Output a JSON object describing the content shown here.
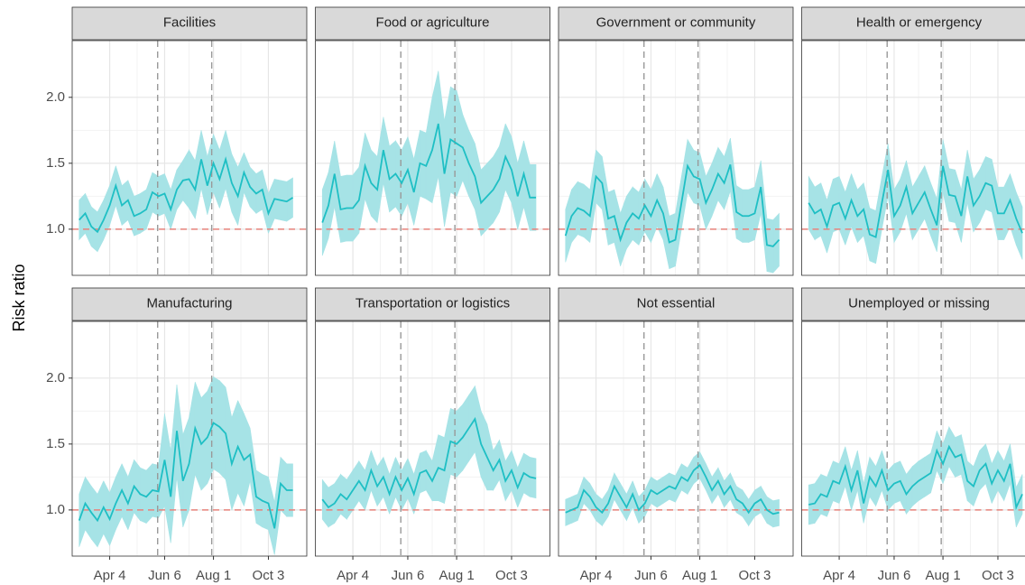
{
  "y_label": "Risk ratio",
  "facet_axes": {
    "x": [
      60,
      67,
      74,
      81,
      88,
      95,
      102,
      109,
      116,
      123,
      130,
      137,
      144,
      151,
      158,
      165,
      172,
      179,
      186,
      193,
      200,
      207,
      214,
      221,
      228,
      235,
      242,
      249,
      256,
      263,
      270,
      277,
      284,
      291,
      298,
      305
    ],
    "xlim": [
      52,
      321
    ],
    "xticks": [
      {
        "value": 95,
        "label": "Apr 4"
      },
      {
        "value": 158,
        "label": "Jun 6"
      },
      {
        "value": 214,
        "label": "Aug 1"
      },
      {
        "value": 277,
        "label": "Oct 3"
      }
    ],
    "ylim": [
      0.65,
      2.43
    ],
    "yticks": [
      {
        "value": 1,
        "label": "1.0"
      },
      {
        "value": 1.5,
        "label": "1.5"
      },
      {
        "value": 2,
        "label": "2.0"
      }
    ],
    "grid": true,
    "reference_x": [
      150,
      212
    ],
    "reference_y": 1
  },
  "chart_data": [
    {
      "type": "line",
      "title": "Facilities",
      "series": [
        {
          "color": "#1fbfc4",
          "band_color": "#a6e3e6",
          "values": [
            1.07,
            1.12,
            1.02,
            0.98,
            1.07,
            1.18,
            1.33,
            1.18,
            1.22,
            1.1,
            1.12,
            1.15,
            1.28,
            1.25,
            1.27,
            1.15,
            1.3,
            1.37,
            1.38,
            1.3,
            1.53,
            1.33,
            1.5,
            1.38,
            1.53,
            1.35,
            1.25,
            1.43,
            1.32,
            1.27,
            1.3,
            1.12,
            1.23,
            1.22,
            1.21,
            1.24
          ],
          "lower": [
            0.92,
            0.97,
            0.87,
            0.83,
            0.92,
            1.03,
            1.18,
            1.03,
            1.07,
            0.95,
            0.97,
            1.0,
            1.13,
            1.1,
            1.12,
            1.0,
            1.15,
            1.22,
            1.16,
            1.08,
            1.31,
            1.11,
            1.28,
            1.16,
            1.31,
            1.13,
            1.03,
            1.28,
            1.17,
            1.12,
            1.15,
            0.97,
            1.08,
            1.07,
            1.06,
            1.09
          ],
          "upper": [
            1.22,
            1.27,
            1.17,
            1.13,
            1.22,
            1.33,
            1.48,
            1.33,
            1.37,
            1.25,
            1.27,
            1.3,
            1.43,
            1.4,
            1.42,
            1.3,
            1.45,
            1.52,
            1.6,
            1.52,
            1.75,
            1.55,
            1.72,
            1.6,
            1.75,
            1.57,
            1.47,
            1.58,
            1.47,
            1.42,
            1.45,
            1.27,
            1.38,
            1.37,
            1.36,
            1.39
          ]
        }
      ]
    },
    {
      "type": "line",
      "title": "Food or agriculture",
      "series": [
        {
          "color": "#1fbfc4",
          "band_color": "#a6e3e6",
          "values": [
            1.05,
            1.18,
            1.42,
            1.15,
            1.16,
            1.16,
            1.22,
            1.48,
            1.35,
            1.3,
            1.6,
            1.38,
            1.42,
            1.35,
            1.45,
            1.28,
            1.5,
            1.48,
            1.6,
            1.8,
            1.42,
            1.68,
            1.65,
            1.62,
            1.5,
            1.4,
            1.2,
            1.25,
            1.3,
            1.38,
            1.55,
            1.45,
            1.25,
            1.42,
            1.24,
            1.24
          ],
          "lower": [
            0.8,
            0.93,
            1.17,
            0.9,
            0.91,
            0.91,
            0.97,
            1.23,
            1.1,
            1.05,
            1.35,
            1.13,
            1.17,
            1.1,
            1.2,
            1.03,
            1.25,
            1.23,
            1.2,
            1.4,
            1.02,
            1.28,
            1.25,
            1.37,
            1.25,
            1.15,
            0.95,
            1.0,
            1.05,
            1.13,
            1.3,
            1.2,
            1.0,
            1.17,
            0.99,
            0.99
          ],
          "upper": [
            1.3,
            1.43,
            1.67,
            1.4,
            1.41,
            1.41,
            1.47,
            1.73,
            1.6,
            1.55,
            1.85,
            1.63,
            1.67,
            1.6,
            1.7,
            1.53,
            1.75,
            1.73,
            2.0,
            2.2,
            1.82,
            2.08,
            2.05,
            1.87,
            1.75,
            1.65,
            1.45,
            1.5,
            1.55,
            1.63,
            1.8,
            1.7,
            1.5,
            1.67,
            1.49,
            1.49
          ]
        }
      ]
    },
    {
      "type": "line",
      "title": "Government or community",
      "series": [
        {
          "color": "#1fbfc4",
          "band_color": "#a6e3e6",
          "values": [
            0.95,
            1.1,
            1.16,
            1.14,
            1.1,
            1.4,
            1.35,
            1.08,
            1.1,
            0.92,
            1.05,
            1.12,
            1.08,
            1.18,
            1.1,
            1.22,
            1.12,
            0.9,
            0.92,
            1.2,
            1.48,
            1.4,
            1.38,
            1.2,
            1.3,
            1.42,
            1.35,
            1.49,
            1.13,
            1.1,
            1.1,
            1.12,
            1.32,
            0.88,
            0.87,
            0.92
          ],
          "lower": [
            0.75,
            0.9,
            0.96,
            0.94,
            0.9,
            1.2,
            1.15,
            0.88,
            0.9,
            0.72,
            0.85,
            0.92,
            0.88,
            0.98,
            0.9,
            1.02,
            0.92,
            0.7,
            0.72,
            1.0,
            1.28,
            1.2,
            1.18,
            1.0,
            1.1,
            1.22,
            1.15,
            1.29,
            0.93,
            0.9,
            0.9,
            0.92,
            1.12,
            0.68,
            0.67,
            0.72
          ],
          "upper": [
            1.15,
            1.3,
            1.36,
            1.34,
            1.3,
            1.6,
            1.55,
            1.28,
            1.3,
            1.12,
            1.25,
            1.32,
            1.28,
            1.38,
            1.3,
            1.42,
            1.32,
            1.1,
            1.12,
            1.4,
            1.68,
            1.6,
            1.58,
            1.4,
            1.5,
            1.62,
            1.55,
            1.69,
            1.33,
            1.3,
            1.3,
            1.32,
            1.52,
            1.08,
            1.07,
            1.12
          ]
        }
      ]
    },
    {
      "type": "line",
      "title": "Health or emergency",
      "series": [
        {
          "color": "#1fbfc4",
          "band_color": "#a6e3e6",
          "values": [
            1.2,
            1.12,
            1.15,
            1.02,
            1.18,
            1.2,
            1.08,
            1.22,
            1.1,
            1.15,
            0.96,
            0.94,
            1.2,
            1.45,
            1.1,
            1.18,
            1.32,
            1.12,
            1.2,
            1.28,
            1.15,
            1.03,
            1.48,
            1.26,
            1.25,
            1.1,
            1.4,
            1.18,
            1.25,
            1.35,
            1.33,
            1.12,
            1.12,
            1.22,
            1.08,
            0.97
          ],
          "lower": [
            1.0,
            0.92,
            0.95,
            0.82,
            0.98,
            1.0,
            0.88,
            1.02,
            0.9,
            0.95,
            0.76,
            0.74,
            1.0,
            1.25,
            0.9,
            0.98,
            1.12,
            0.92,
            1.0,
            1.08,
            0.95,
            0.83,
            1.28,
            1.06,
            1.05,
            0.9,
            1.2,
            0.98,
            1.05,
            1.15,
            1.13,
            0.92,
            0.92,
            1.02,
            0.88,
            0.77
          ],
          "upper": [
            1.4,
            1.32,
            1.35,
            1.22,
            1.38,
            1.4,
            1.28,
            1.42,
            1.3,
            1.35,
            1.16,
            1.14,
            1.4,
            1.65,
            1.3,
            1.38,
            1.52,
            1.32,
            1.4,
            1.48,
            1.35,
            1.23,
            1.68,
            1.46,
            1.45,
            1.3,
            1.6,
            1.38,
            1.45,
            1.55,
            1.53,
            1.32,
            1.32,
            1.42,
            1.28,
            1.17
          ]
        }
      ]
    },
    {
      "type": "line",
      "title": "Manufacturing",
      "series": [
        {
          "color": "#1fbfc4",
          "band_color": "#a6e3e6",
          "values": [
            0.92,
            1.05,
            0.98,
            0.92,
            1.02,
            0.93,
            1.05,
            1.15,
            1.05,
            1.18,
            1.12,
            1.1,
            1.15,
            1.14,
            1.38,
            1.1,
            1.6,
            1.22,
            1.35,
            1.62,
            1.5,
            1.55,
            1.66,
            1.63,
            1.58,
            1.35,
            1.48,
            1.38,
            1.42,
            1.1,
            1.07,
            1.05,
            0.86,
            1.2,
            1.15,
            1.15
          ],
          "lower": [
            0.72,
            0.85,
            0.78,
            0.72,
            0.82,
            0.73,
            0.85,
            0.95,
            0.85,
            0.98,
            0.92,
            0.9,
            0.95,
            0.94,
            1.03,
            0.75,
            1.25,
            0.87,
            1.0,
            1.27,
            1.15,
            1.2,
            1.31,
            1.28,
            1.23,
            1.0,
            1.13,
            1.03,
            1.22,
            0.9,
            0.87,
            0.85,
            0.66,
            1.0,
            0.95,
            0.95
          ],
          "upper": [
            1.12,
            1.25,
            1.18,
            1.12,
            1.22,
            1.13,
            1.25,
            1.35,
            1.25,
            1.38,
            1.32,
            1.3,
            1.35,
            1.34,
            1.73,
            1.45,
            1.95,
            1.57,
            1.7,
            1.97,
            1.85,
            1.9,
            2.01,
            1.98,
            1.93,
            1.7,
            1.83,
            1.73,
            1.62,
            1.3,
            1.27,
            1.25,
            1.06,
            1.4,
            1.35,
            1.35
          ]
        }
      ]
    },
    {
      "type": "line",
      "title": "Transportation or logistics",
      "series": [
        {
          "color": "#1fbfc4",
          "band_color": "#a6e3e6",
          "values": [
            1.08,
            1.02,
            1.05,
            1.12,
            1.08,
            1.15,
            1.22,
            1.15,
            1.3,
            1.18,
            1.25,
            1.12,
            1.25,
            1.15,
            1.24,
            1.12,
            1.28,
            1.3,
            1.22,
            1.32,
            1.3,
            1.52,
            1.5,
            1.55,
            1.62,
            1.69,
            1.5,
            1.4,
            1.3,
            1.38,
            1.22,
            1.3,
            1.17,
            1.28,
            1.25,
            1.24
          ],
          "lower": [
            0.93,
            0.87,
            0.9,
            0.97,
            0.93,
            1.0,
            1.07,
            1.0,
            1.15,
            1.03,
            1.1,
            0.97,
            1.1,
            1.0,
            1.09,
            0.97,
            1.13,
            1.15,
            1.07,
            1.07,
            1.05,
            1.27,
            1.25,
            1.3,
            1.37,
            1.44,
            1.25,
            1.15,
            1.15,
            1.23,
            1.07,
            1.15,
            1.02,
            1.13,
            1.1,
            1.09
          ],
          "upper": [
            1.23,
            1.17,
            1.2,
            1.27,
            1.23,
            1.3,
            1.37,
            1.3,
            1.45,
            1.33,
            1.4,
            1.27,
            1.4,
            1.3,
            1.39,
            1.27,
            1.43,
            1.45,
            1.37,
            1.57,
            1.55,
            1.77,
            1.75,
            1.8,
            1.87,
            1.94,
            1.75,
            1.65,
            1.45,
            1.53,
            1.37,
            1.45,
            1.32,
            1.43,
            1.4,
            1.39
          ]
        }
      ]
    },
    {
      "type": "line",
      "title": "Not essential",
      "series": [
        {
          "color": "#1fbfc4",
          "band_color": "#a6e3e6",
          "values": [
            0.98,
            1.0,
            1.02,
            1.15,
            1.1,
            1.02,
            0.98,
            1.05,
            1.18,
            1.1,
            1.02,
            1.12,
            1.0,
            1.05,
            1.15,
            1.12,
            1.15,
            1.18,
            1.16,
            1.25,
            1.22,
            1.3,
            1.34,
            1.25,
            1.15,
            1.22,
            1.12,
            1.18,
            1.08,
            1.05,
            0.98,
            1.05,
            1.08,
            1.0,
            0.97,
            0.98
          ],
          "lower": [
            0.88,
            0.9,
            0.92,
            1.05,
            1.0,
            0.92,
            0.88,
            0.95,
            1.08,
            1.0,
            0.92,
            1.02,
            0.9,
            0.95,
            1.05,
            1.02,
            1.05,
            1.08,
            1.06,
            1.15,
            1.12,
            1.2,
            1.24,
            1.15,
            1.05,
            1.12,
            1.02,
            1.08,
            0.98,
            0.95,
            0.88,
            0.95,
            0.98,
            0.9,
            0.87,
            0.88
          ],
          "upper": [
            1.08,
            1.1,
            1.12,
            1.25,
            1.2,
            1.12,
            1.08,
            1.15,
            1.28,
            1.2,
            1.12,
            1.22,
            1.1,
            1.15,
            1.25,
            1.22,
            1.25,
            1.28,
            1.26,
            1.35,
            1.32,
            1.4,
            1.44,
            1.35,
            1.25,
            1.32,
            1.22,
            1.28,
            1.18,
            1.15,
            1.08,
            1.15,
            1.18,
            1.1,
            1.07,
            1.08
          ]
        }
      ]
    },
    {
      "type": "line",
      "title": "Unemployed or missing",
      "series": [
        {
          "color": "#1fbfc4",
          "band_color": "#a6e3e6",
          "values": [
            1.04,
            1.05,
            1.12,
            1.1,
            1.22,
            1.2,
            1.33,
            1.15,
            1.3,
            1.05,
            1.25,
            1.18,
            1.3,
            1.15,
            1.2,
            1.22,
            1.12,
            1.18,
            1.22,
            1.25,
            1.28,
            1.45,
            1.35,
            1.48,
            1.4,
            1.42,
            1.22,
            1.18,
            1.3,
            1.35,
            1.2,
            1.3,
            1.22,
            1.35,
            1.02,
            1.12
          ],
          "lower": [
            0.89,
            0.9,
            0.97,
            0.95,
            1.07,
            1.05,
            1.18,
            1.0,
            1.15,
            0.9,
            1.1,
            1.03,
            1.15,
            1.0,
            1.05,
            1.07,
            0.97,
            1.03,
            1.07,
            1.1,
            1.13,
            1.3,
            1.2,
            1.33,
            1.25,
            1.27,
            1.07,
            1.03,
            1.15,
            1.2,
            1.05,
            1.15,
            1.07,
            1.2,
            0.87,
            0.97
          ],
          "upper": [
            1.19,
            1.2,
            1.27,
            1.25,
            1.37,
            1.35,
            1.48,
            1.3,
            1.45,
            1.2,
            1.4,
            1.33,
            1.45,
            1.3,
            1.35,
            1.37,
            1.27,
            1.33,
            1.37,
            1.4,
            1.43,
            1.6,
            1.5,
            1.63,
            1.55,
            1.57,
            1.37,
            1.33,
            1.45,
            1.5,
            1.35,
            1.45,
            1.37,
            1.5,
            1.17,
            1.27
          ]
        }
      ]
    }
  ]
}
